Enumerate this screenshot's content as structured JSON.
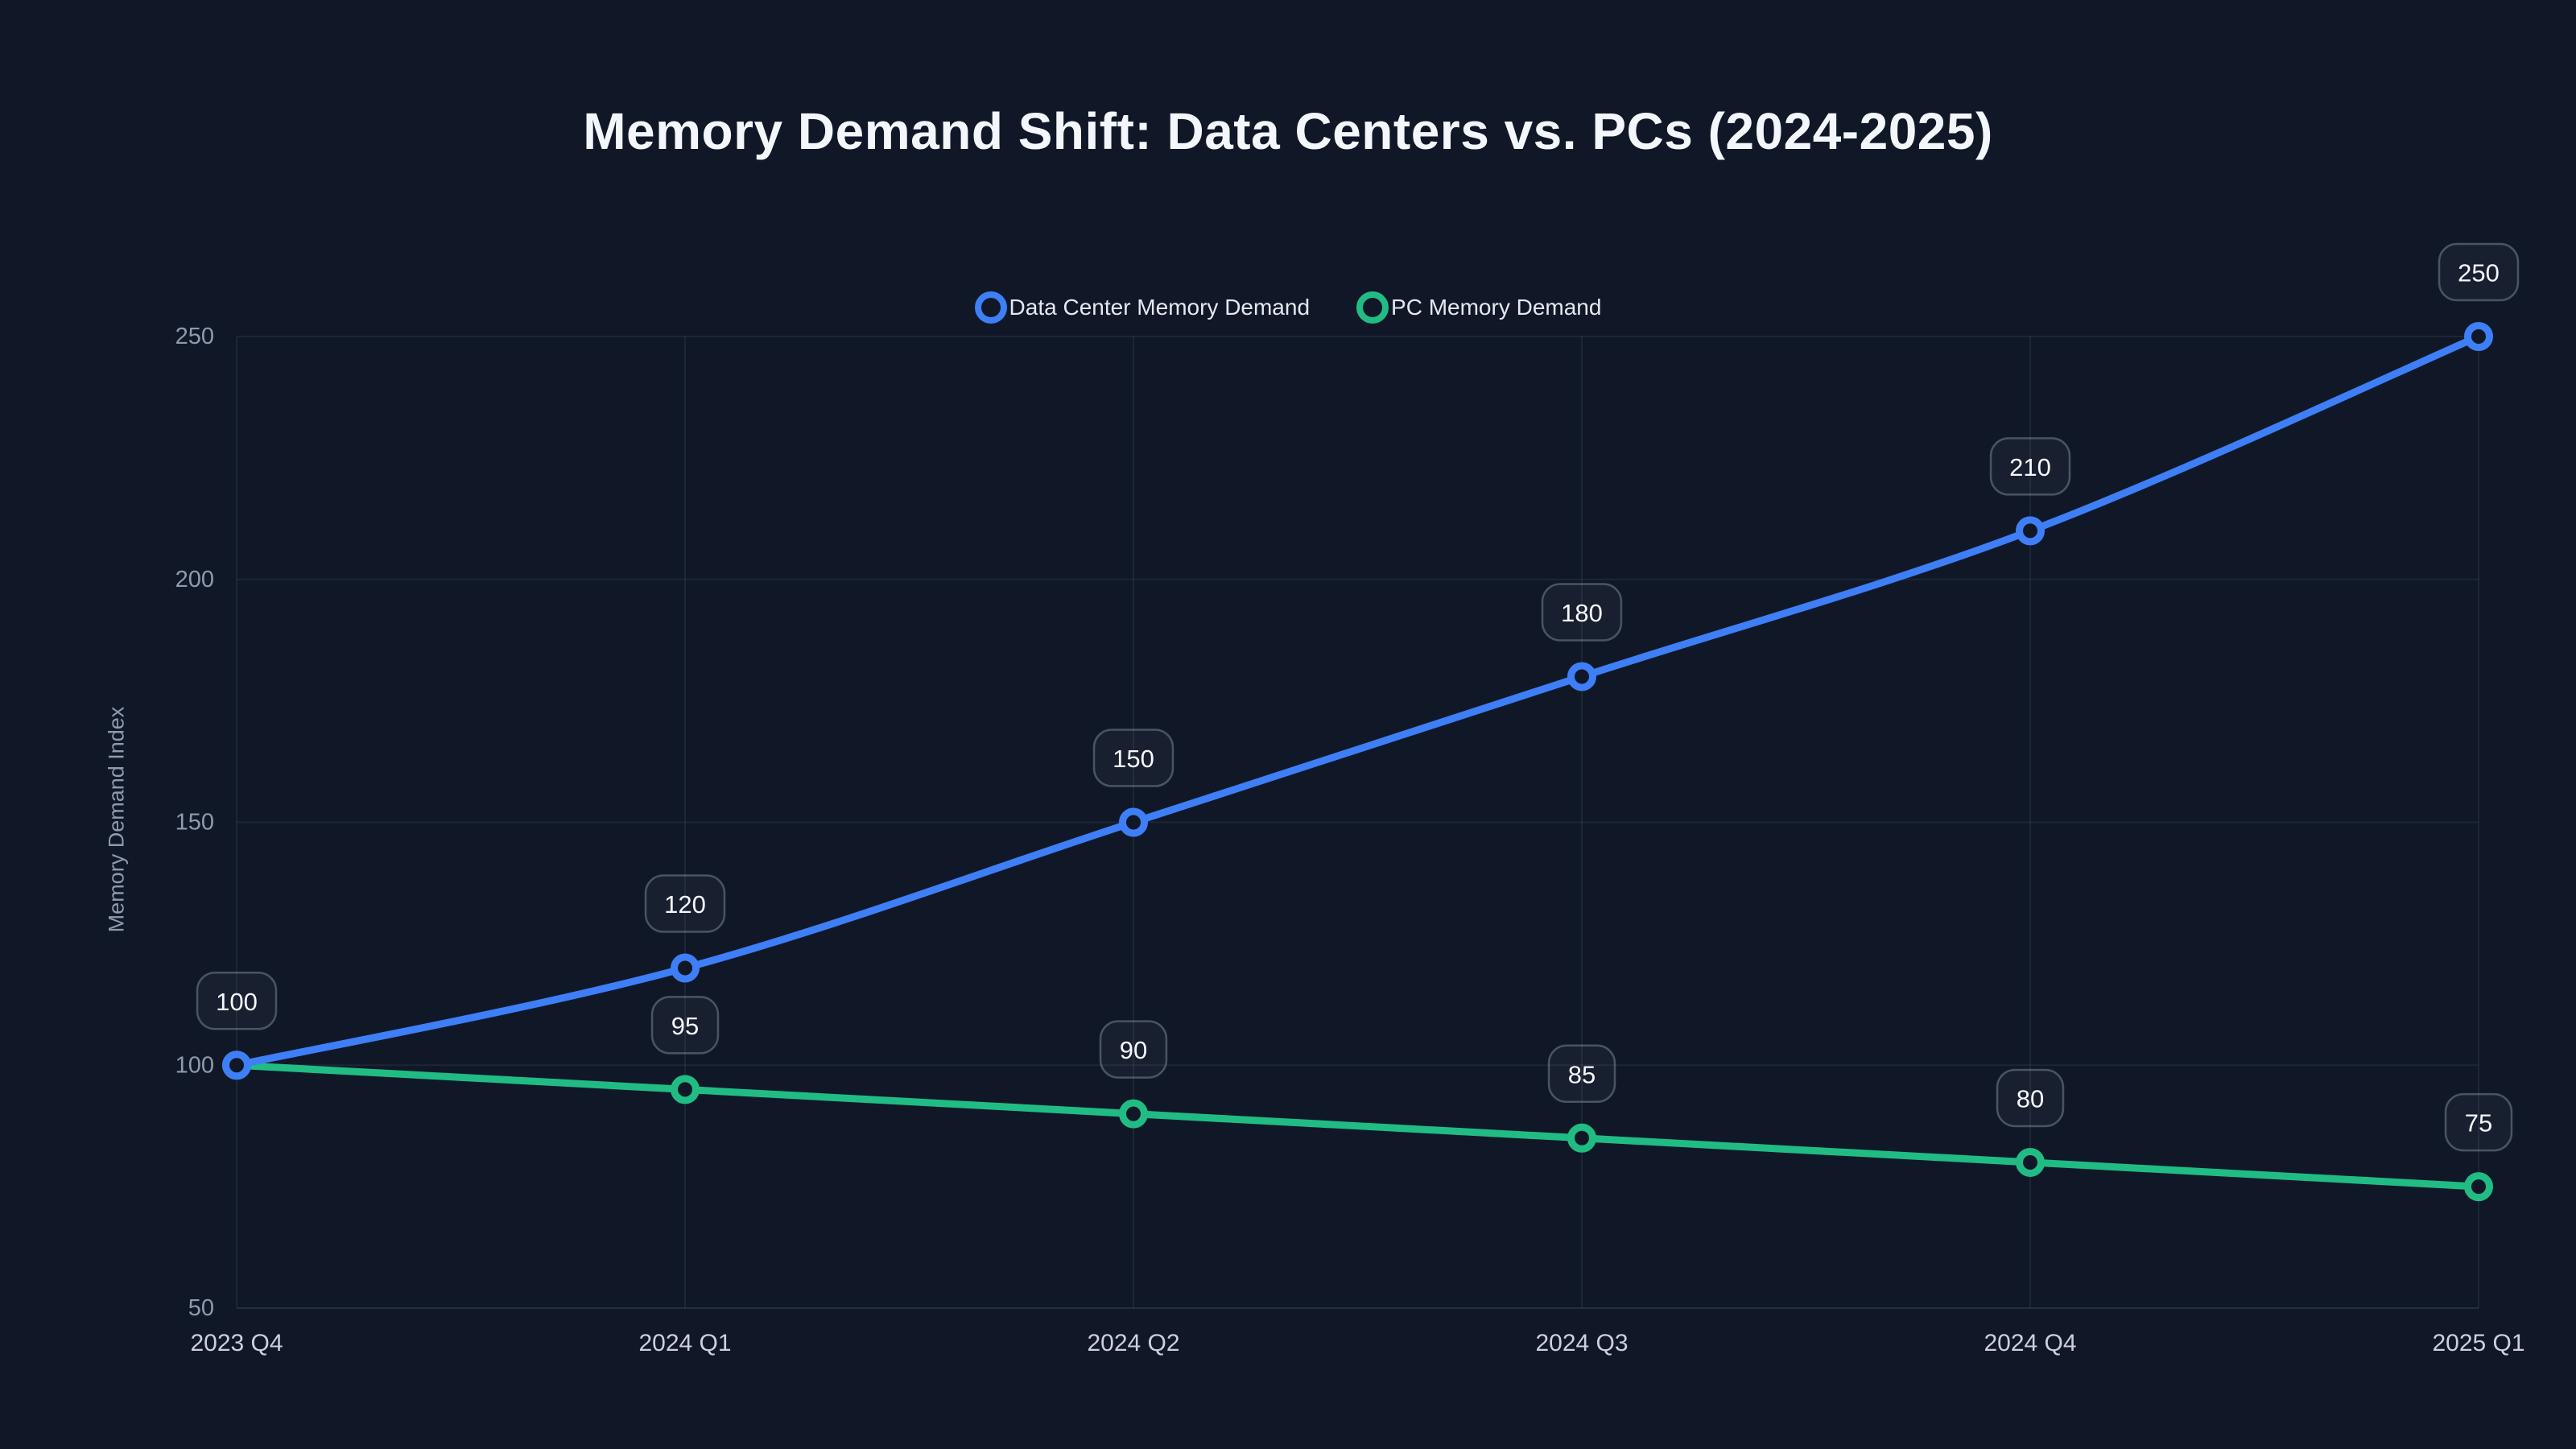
{
  "chart_data": {
    "type": "line",
    "title": "Memory Demand Shift: Data Centers vs. PCs (2024-2025)",
    "xlabel": "",
    "ylabel": "Memory Demand Index",
    "categories": [
      "2023 Q4",
      "2024 Q1",
      "2024 Q2",
      "2024 Q3",
      "2024 Q4",
      "2025 Q1"
    ],
    "series": [
      {
        "name": "Data Center Memory Demand",
        "color": "#3e7ff7",
        "values": [
          100,
          120,
          150,
          180,
          210,
          250
        ],
        "point_labels": [
          "100",
          "120",
          "150",
          "180",
          "210",
          "250"
        ],
        "legend_marker": "ring"
      },
      {
        "name": "PC Memory Demand",
        "color": "#20bc84",
        "values": [
          100,
          95,
          90,
          85,
          80,
          75
        ],
        "point_labels": [
          "",
          "95",
          "90",
          "85",
          "80",
          "75"
        ],
        "legend_marker": "ring"
      }
    ],
    "ylim": [
      50,
      250
    ],
    "yticks": [
      50,
      100,
      150,
      200,
      250
    ],
    "grid": true,
    "smooth": true,
    "legend_position": "top"
  },
  "colors": {
    "background": "#101828",
    "gridline": "rgba(148,163,184,0.10)",
    "axis_line": "rgba(148,163,184,0.16)",
    "y_tick_text": "#8e9aae",
    "x_tick_text": "#c9d1dd",
    "axis_title_text": "#8e9aae",
    "legend_text": "#e4e9f1",
    "title_text": "#f3f6fa",
    "label_box_fill": "rgba(148,163,184,0.06)",
    "label_box_stroke": "rgba(148,163,184,0.42)",
    "label_text": "#f5f8fc"
  }
}
